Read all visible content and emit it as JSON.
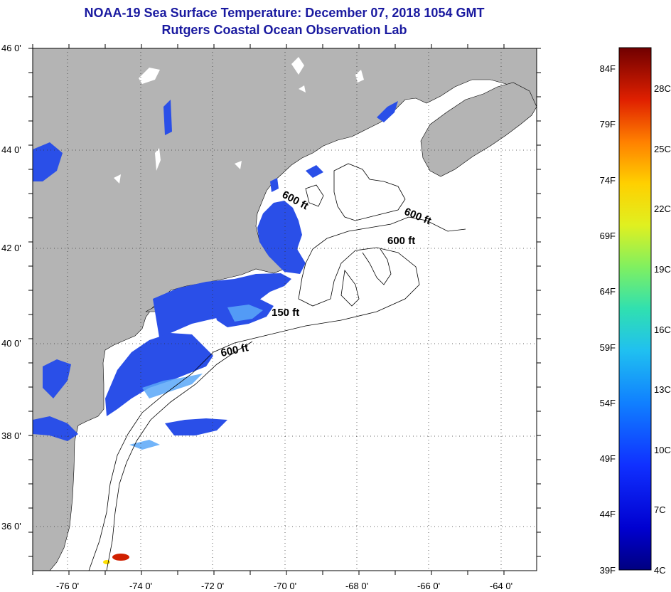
{
  "title": "NOAA-19 Sea Surface Temperature:  December 07, 2018 1054 GMT",
  "subtitle": "Rutgers Coastal Ocean Observation Lab",
  "lat_labels": [
    "46 0'",
    "44 0'",
    "42 0'",
    "40 0'",
    "38 0'",
    "36 0'"
  ],
  "lon_labels": [
    "-76 0'",
    "-74 0'",
    "-72 0'",
    "-70 0'",
    "-68 0'",
    "-66 0'",
    "-64 0'"
  ],
  "contour_labels": [
    "600 ft",
    "600 ft",
    "600 ft",
    "150 ft",
    "600 ft"
  ],
  "colorbar": {
    "f_labels": [
      "84F",
      "79F",
      "74F",
      "69F",
      "64F",
      "59F",
      "54F",
      "49F",
      "44F",
      "39F"
    ],
    "c_labels": [
      "28C",
      "25C",
      "22C",
      "19C",
      "16C",
      "13C",
      "10C",
      "7C",
      "4C"
    ],
    "colors": [
      "#7a0000",
      "#d01000",
      "#ff5000",
      "#ffa000",
      "#ffe000",
      "#a0ff40",
      "#30e0a0",
      "#20c0f0",
      "#1060ff",
      "#1010d0",
      "#000080"
    ]
  },
  "colors": {
    "land": "#b4b4b4",
    "ocean": "#ffffff",
    "sst_cold": "#2a4fe8",
    "title": "#1a1aa0"
  }
}
